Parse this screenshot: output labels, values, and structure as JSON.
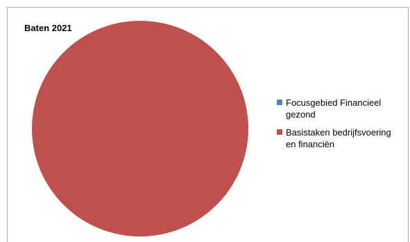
{
  "chart_data": {
    "type": "pie",
    "title": "Baten 2021",
    "legend_position": "right",
    "categories": [
      "Focusgebied Financieel gezond",
      "Basistaken bedrijfsvoering en financiën"
    ],
    "values": [
      0,
      100
    ],
    "colors": [
      "#4f81bd",
      "#c0504d"
    ]
  },
  "legend": {
    "items": [
      {
        "label_line1": "Focusgebied Financieel",
        "label_line2": "gezond",
        "color": "#4f81bd"
      },
      {
        "label_line1": "Basistaken bedrijfsvoering",
        "label_line2": "en financiën",
        "color": "#c0504d"
      }
    ]
  }
}
